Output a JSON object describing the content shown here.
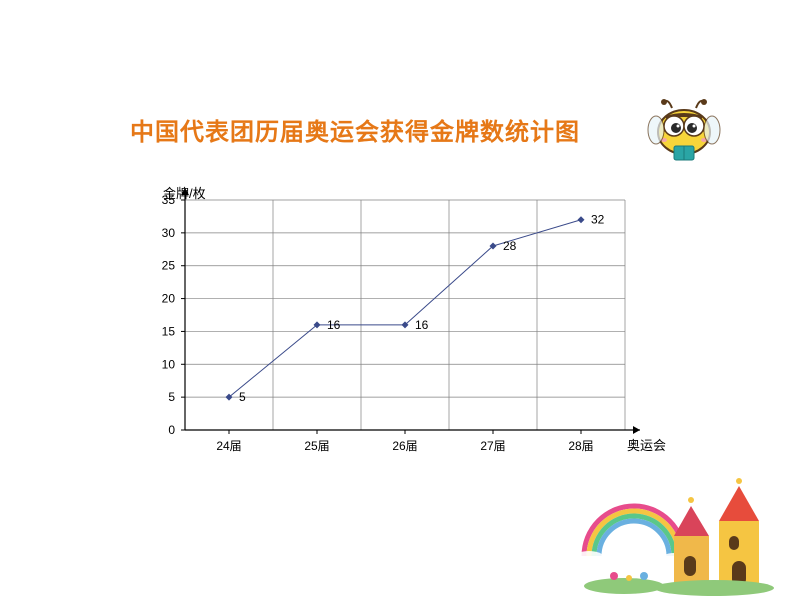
{
  "title": {
    "text": "中国代表团历届奥运会获得金牌数统计图",
    "color": "#e67817",
    "fontsize": 24
  },
  "chart": {
    "type": "line",
    "y_axis_label": "金牌/枚",
    "x_axis_label": "奥运会",
    "categories": [
      "24届",
      "25届",
      "26届",
      "27届",
      "28届"
    ],
    "values": [
      5,
      16,
      16,
      28,
      32
    ],
    "data_labels": [
      "5",
      "16",
      "16",
      "28",
      "32"
    ],
    "ylim": [
      0,
      35
    ],
    "ytick_step": 5,
    "yticks": [
      0,
      5,
      10,
      15,
      20,
      25,
      30,
      35
    ],
    "line_color": "#3a4a8a",
    "marker_color": "#3a4a8a",
    "marker_style": "diamond",
    "marker_size": 5,
    "line_width": 1,
    "grid_color": "#808080",
    "axis_color": "#000000",
    "background_color": "#ffffff",
    "label_fontsize": 13,
    "tick_fontsize": 12
  },
  "decorations": {
    "bee_icon": "bee-character",
    "castle_icon": "castle-rainbow-scene"
  }
}
